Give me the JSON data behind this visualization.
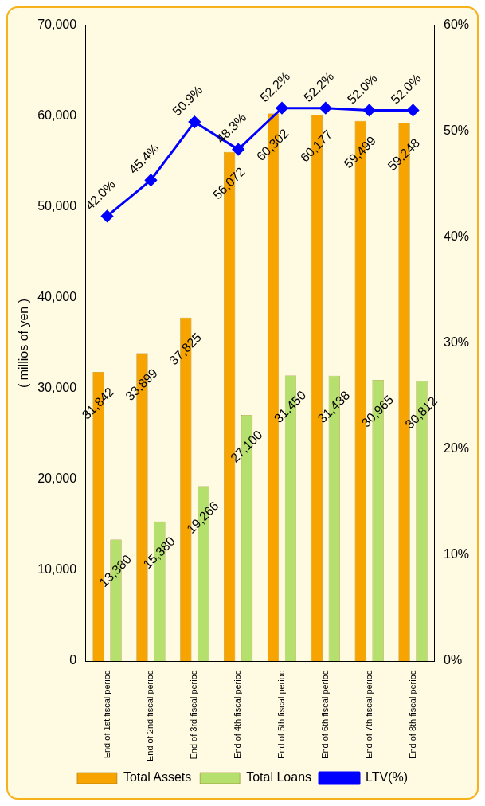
{
  "chart_data": {
    "type": "bar",
    "ylabel": "( millios of yen )",
    "categories": [
      "End of 1st fiscal period",
      "End of 2nd fiscal period",
      "End of 3rd fiscal period",
      "End of 4th fiscal period",
      "End of 5th fiscal period",
      "End of 6th fiscal period",
      "End of 7th fiscal period",
      "End of 8th fiscal period"
    ],
    "ylim": [
      0,
      70000
    ],
    "yticks": [
      {
        "value": 0,
        "label": "0"
      },
      {
        "value": 10000,
        "label": "10,000"
      },
      {
        "value": 20000,
        "label": "20,000"
      },
      {
        "value": 30000,
        "label": "30,000"
      },
      {
        "value": 40000,
        "label": "40,000"
      },
      {
        "value": 50000,
        "label": "50,000"
      },
      {
        "value": 60000,
        "label": "60,000"
      },
      {
        "value": 70000,
        "label": "70,000"
      }
    ],
    "y2lim": [
      0,
      60
    ],
    "y2ticks": [
      {
        "value": 0,
        "label": "0%"
      },
      {
        "value": 10,
        "label": "10%"
      },
      {
        "value": 20,
        "label": "20%"
      },
      {
        "value": 30,
        "label": "30%"
      },
      {
        "value": 40,
        "label": "40%"
      },
      {
        "value": 50,
        "label": "50%"
      },
      {
        "value": 60,
        "label": "60%"
      }
    ],
    "grid": false,
    "legend": "bottom",
    "series": [
      {
        "name": "Total Assets",
        "color": "#f7a400",
        "values": [
          31842,
          33899,
          37825,
          56072,
          60302,
          60177,
          59499,
          59248
        ],
        "value_labels": [
          "31,842",
          "33,899",
          "37,825",
          "56,072",
          "60,302",
          "60,177",
          "59,499",
          "59,248"
        ]
      },
      {
        "name": "Total Loans",
        "color": "#b5e06e",
        "values": [
          13380,
          15380,
          19266,
          27100,
          31450,
          31438,
          30965,
          30812
        ],
        "value_labels": [
          "13,380",
          "15,380",
          "19,266",
          "27,100",
          "31,450",
          "31,438",
          "30,965",
          "30,812"
        ]
      },
      {
        "name": "LTV(%)",
        "type": "line",
        "axis": "y2",
        "color": "#0000ff",
        "marker": "diamond",
        "values": [
          42.0,
          45.4,
          50.9,
          48.3,
          52.2,
          52.2,
          52.0,
          52.0
        ],
        "value_labels": [
          "42.0%",
          "45.4%",
          "50.9%",
          "48.3%",
          "52.2%",
          "52.2%",
          "52.0%",
          "52.0%"
        ]
      }
    ]
  }
}
